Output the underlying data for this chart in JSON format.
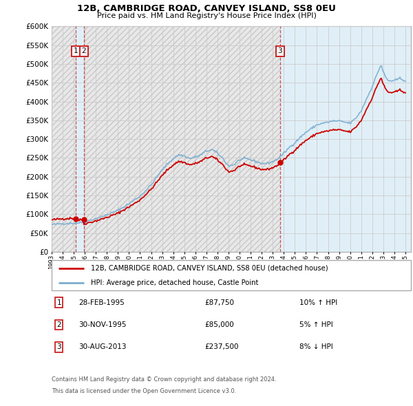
{
  "title": "12B, CAMBRIDGE ROAD, CANVEY ISLAND, SS8 0EU",
  "subtitle": "Price paid vs. HM Land Registry's House Price Index (HPI)",
  "sales": [
    {
      "label": "1",
      "date_num": 1995.16,
      "price": 87750,
      "pct": "10%",
      "dir": "↑",
      "date_str": "28-FEB-1995"
    },
    {
      "label": "2",
      "date_num": 1995.91,
      "price": 85000,
      "pct": "5%",
      "dir": "↑",
      "date_str": "30-NOV-1995"
    },
    {
      "label": "3",
      "date_num": 2013.66,
      "price": 237500,
      "pct": "8%",
      "dir": "↓",
      "date_str": "30-AUG-2013"
    }
  ],
  "legend_line1": "12B, CAMBRIDGE ROAD, CANVEY ISLAND, SS8 0EU (detached house)",
  "legend_line2": "HPI: Average price, detached house, Castle Point",
  "footer1": "Contains HM Land Registry data © Crown copyright and database right 2024.",
  "footer2": "This data is licensed under the Open Government Licence v3.0.",
  "red_color": "#cc0000",
  "blue_color": "#7aadcf",
  "dashed_color": "#cc3333",
  "table_rows": [
    [
      "1",
      "28-FEB-1995",
      "£87,750",
      "10% ↑ HPI"
    ],
    [
      "2",
      "30-NOV-1995",
      "£85,000",
      "5% ↑ HPI"
    ],
    [
      "3",
      "30-AUG-2013",
      "£237,500",
      "8% ↓ HPI"
    ]
  ],
  "ylim": [
    0,
    600000
  ],
  "xlim": [
    1993.0,
    2025.5
  ],
  "yticks": [
    0,
    50000,
    100000,
    150000,
    200000,
    250000,
    300000,
    350000,
    400000,
    450000,
    500000,
    550000,
    600000
  ]
}
